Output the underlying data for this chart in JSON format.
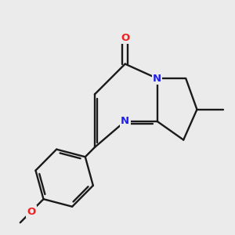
{
  "background_color": "#ebebeb",
  "bond_color": "#1a1a1a",
  "n_color": "#2020ee",
  "o_color": "#ee2020",
  "line_width": 1.7,
  "font_size": 9.5,
  "figsize": [
    3.0,
    3.0
  ],
  "dpi": 100,
  "xlim": [
    -3.5,
    2.5
  ],
  "ylim": [
    -3.0,
    2.5
  ]
}
